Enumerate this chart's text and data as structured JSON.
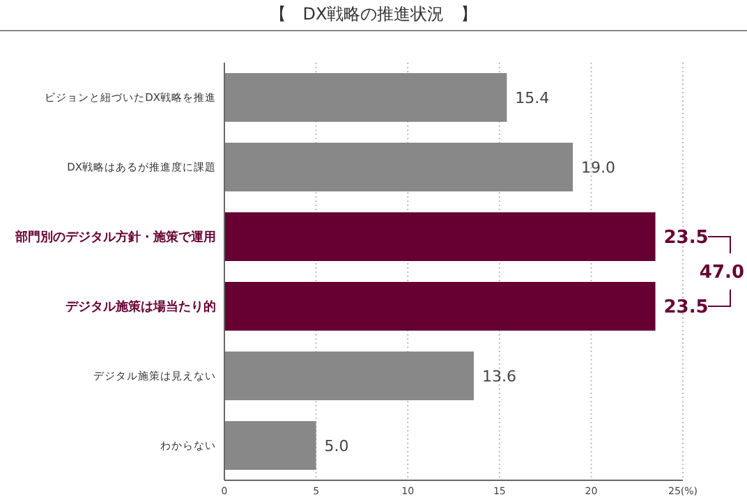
{
  "chart_data": {
    "type": "bar",
    "orientation": "horizontal",
    "title": "【　DX戦略の推進状況　】",
    "categories": [
      "ビジョンと紐づいたDX戦略を推進",
      "DX戦略はあるが推進度に課題",
      "部門別のデジタル方針・施策で運用",
      "デジタル施策は場当たり的",
      "デジタル施策は見えない",
      "わからない"
    ],
    "values": [
      15.4,
      19.0,
      23.5,
      23.5,
      13.6,
      5.0
    ],
    "value_labels": [
      "15.4",
      "19.0",
      "23.5",
      "23.5",
      "13.6",
      "5.0"
    ],
    "colors": [
      "#888888",
      "#888888",
      "#660033",
      "#660033",
      "#888888",
      "#888888"
    ],
    "xlim": [
      0,
      25
    ],
    "xticks": [
      0,
      5,
      10,
      15,
      20,
      {
        "value": 25,
        "label": "25(%)"
      }
    ],
    "grid": "x",
    "annotations": [
      "47.0"
    ]
  }
}
